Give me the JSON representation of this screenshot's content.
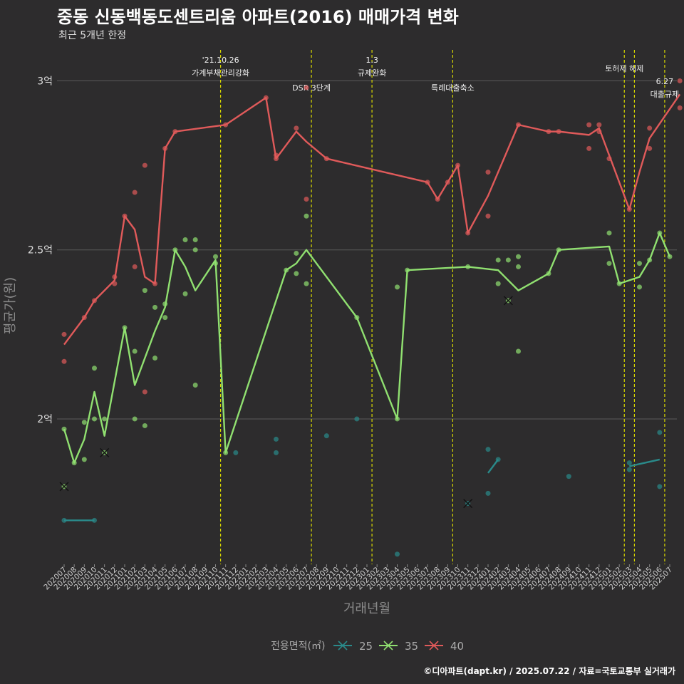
{
  "title": "중동 신동백동도센트리움 아파트(2016) 매매가격 변화",
  "subtitle": "최근 5개년 한정",
  "caption": "©디아파트(dapt.kr) / 2025.07.22 / 자료=국토교통부 실거래가",
  "colors": {
    "background": "#2d2c2d",
    "grid": "#5a5a5a",
    "event_line": "#d8d800",
    "s25": "#2a8a8a",
    "s35": "#90e070",
    "s40": "#e05a5a"
  },
  "chart_data": {
    "type": "line",
    "title": "중동 신동백동도센트리움 아파트(2016) 매매가격 변화",
    "subtitle": "최근 5개년 한정",
    "xlabel": "거래년월",
    "ylabel": "평균가(원)",
    "categories": [
      "202007",
      "202008",
      "202009",
      "202010",
      "202011",
      "202012",
      "202101",
      "202102",
      "202103",
      "202104",
      "202105",
      "202106",
      "202107",
      "202108",
      "202109",
      "202110",
      "202111",
      "202112",
      "202201",
      "202202",
      "202203",
      "202204",
      "202205",
      "202206",
      "202207",
      "202208",
      "202209",
      "202210",
      "202211",
      "202212",
      "202301",
      "202302",
      "202303",
      "202304",
      "202305",
      "202306",
      "202307",
      "202308",
      "202309",
      "202310",
      "202311",
      "202312",
      "202401",
      "202402",
      "202403",
      "202404",
      "202405",
      "202406",
      "202407",
      "202408",
      "202409",
      "202410",
      "202411",
      "202412",
      "202501",
      "202502",
      "202503",
      "202504",
      "202505",
      "202506",
      "202507"
    ],
    "yticks": [
      {
        "value": 2.0,
        "label": "2억"
      },
      {
        "value": 2.5,
        "label": "2.5억"
      },
      {
        "value": 3.0,
        "label": "3억"
      }
    ],
    "ylim": [
      1.57,
      3.1
    ],
    "grid": true,
    "legend": {
      "title": "전용면적(㎡)",
      "position": "bottom"
    },
    "series": [
      {
        "name": "25",
        "color": "#2a8a8a",
        "line": [
          [
            0,
            1.7
          ],
          [
            3,
            1.7
          ],
          null,
          [
            42,
            1.84
          ],
          [
            43,
            1.88
          ],
          null,
          [
            56,
            1.86
          ],
          [
            59,
            1.88
          ]
        ],
        "points": [
          [
            0,
            1.7
          ],
          [
            3,
            1.7
          ],
          [
            17,
            1.9
          ],
          [
            21,
            1.94
          ],
          [
            21,
            1.9
          ],
          [
            26,
            1.95
          ],
          [
            29,
            2.0
          ],
          [
            33,
            1.6
          ],
          [
            42,
            1.91
          ],
          [
            42,
            1.78
          ],
          [
            43,
            1.88
          ],
          [
            50,
            1.83
          ],
          [
            56,
            1.87
          ],
          [
            56,
            1.85
          ],
          [
            59,
            1.96
          ],
          [
            59,
            1.8
          ]
        ],
        "cancelled": [
          [
            40,
            1.75
          ]
        ]
      },
      {
        "name": "35",
        "color": "#90e070",
        "line": [
          [
            0,
            1.97
          ],
          [
            1,
            1.87
          ],
          [
            2,
            1.94
          ],
          [
            3,
            2.08
          ],
          [
            4,
            1.95
          ],
          [
            6,
            2.27
          ],
          [
            7,
            2.1
          ],
          [
            9,
            2.26
          ],
          [
            10,
            2.33
          ],
          [
            11,
            2.5
          ],
          [
            12,
            2.45
          ],
          [
            13,
            2.38
          ],
          [
            15,
            2.47
          ],
          [
            16,
            1.9
          ],
          [
            22,
            2.44
          ],
          [
            23,
            2.46
          ],
          [
            24,
            2.5
          ],
          [
            29,
            2.3
          ],
          [
            33,
            2.0
          ],
          [
            34,
            2.44
          ],
          [
            40,
            2.45
          ],
          [
            43,
            2.44
          ],
          [
            44,
            2.41
          ],
          [
            45,
            2.38
          ],
          [
            48,
            2.43
          ],
          [
            49,
            2.5
          ],
          [
            54,
            2.51
          ],
          [
            55,
            2.4
          ],
          [
            56,
            2.41
          ],
          [
            57,
            2.42
          ],
          [
            58,
            2.47
          ],
          [
            59,
            2.55
          ],
          [
            60,
            2.48
          ]
        ],
        "points": [
          [
            0,
            1.97
          ],
          [
            1,
            1.87
          ],
          [
            2,
            1.99
          ],
          [
            2,
            1.88
          ],
          [
            3,
            2.15
          ],
          [
            3,
            2.0
          ],
          [
            4,
            2.0
          ],
          [
            6,
            2.27
          ],
          [
            7,
            2.2
          ],
          [
            7,
            2.0
          ],
          [
            8,
            2.38
          ],
          [
            8,
            1.98
          ],
          [
            9,
            2.33
          ],
          [
            9,
            2.18
          ],
          [
            10,
            2.34
          ],
          [
            10,
            2.3
          ],
          [
            11,
            2.5
          ],
          [
            12,
            2.53
          ],
          [
            12,
            2.37
          ],
          [
            13,
            2.53
          ],
          [
            13,
            2.5
          ],
          [
            13,
            2.1
          ],
          [
            15,
            2.48
          ],
          [
            15,
            2.46
          ],
          [
            16,
            1.9
          ],
          [
            22,
            2.44
          ],
          [
            23,
            2.49
          ],
          [
            23,
            2.43
          ],
          [
            24,
            2.6
          ],
          [
            24,
            2.4
          ],
          [
            29,
            2.3
          ],
          [
            33,
            2.39
          ],
          [
            33,
            2.0
          ],
          [
            34,
            2.44
          ],
          [
            40,
            2.45
          ],
          [
            43,
            2.47
          ],
          [
            43,
            2.4
          ],
          [
            44,
            2.47
          ],
          [
            45,
            2.48
          ],
          [
            45,
            2.45
          ],
          [
            45,
            2.2
          ],
          [
            48,
            2.43
          ],
          [
            49,
            2.5
          ],
          [
            54,
            2.55
          ],
          [
            54,
            2.46
          ],
          [
            55,
            2.4
          ],
          [
            57,
            2.46
          ],
          [
            57,
            2.39
          ],
          [
            58,
            2.47
          ],
          [
            59,
            2.55
          ],
          [
            60,
            2.48
          ]
        ],
        "cancelled": [
          [
            0,
            1.8
          ],
          [
            4,
            1.9
          ],
          [
            44,
            2.35
          ]
        ]
      },
      {
        "name": "40",
        "color": "#e05a5a",
        "line": [
          [
            0,
            2.22
          ],
          [
            2,
            2.3
          ],
          [
            3,
            2.35
          ],
          [
            5,
            2.41
          ],
          [
            6,
            2.6
          ],
          [
            7,
            2.56
          ],
          [
            8,
            2.42
          ],
          [
            9,
            2.4
          ],
          [
            10,
            2.8
          ],
          [
            11,
            2.85
          ],
          [
            16,
            2.87
          ],
          [
            20,
            2.95
          ],
          [
            21,
            2.77
          ],
          [
            23,
            2.85
          ],
          [
            24,
            2.82
          ],
          [
            26,
            2.77
          ],
          [
            36,
            2.7
          ],
          [
            37,
            2.65
          ],
          [
            38,
            2.7
          ],
          [
            39,
            2.75
          ],
          [
            40,
            2.55
          ],
          [
            42,
            2.66
          ],
          [
            45,
            2.87
          ],
          [
            48,
            2.85
          ],
          [
            49,
            2.85
          ],
          [
            52,
            2.84
          ],
          [
            53,
            2.86
          ],
          [
            54,
            2.78
          ],
          [
            56,
            2.62
          ],
          [
            57,
            2.73
          ],
          [
            58,
            2.83
          ],
          [
            61,
            2.96
          ]
        ],
        "points": [
          [
            0,
            2.25
          ],
          [
            0,
            2.17
          ],
          [
            2,
            2.3
          ],
          [
            3,
            2.35
          ],
          [
            5,
            2.42
          ],
          [
            5,
            2.4
          ],
          [
            6,
            2.6
          ],
          [
            7,
            2.67
          ],
          [
            7,
            2.45
          ],
          [
            8,
            2.75
          ],
          [
            8,
            2.08
          ],
          [
            9,
            2.4
          ],
          [
            10,
            2.8
          ],
          [
            11,
            2.85
          ],
          [
            16,
            2.87
          ],
          [
            20,
            2.95
          ],
          [
            21,
            2.78
          ],
          [
            21,
            2.77
          ],
          [
            23,
            2.86
          ],
          [
            24,
            2.98
          ],
          [
            24,
            2.65
          ],
          [
            26,
            2.77
          ],
          [
            36,
            2.7
          ],
          [
            37,
            2.65
          ],
          [
            38,
            2.7
          ],
          [
            39,
            2.75
          ],
          [
            40,
            2.55
          ],
          [
            42,
            2.73
          ],
          [
            42,
            2.6
          ],
          [
            45,
            2.87
          ],
          [
            48,
            2.85
          ],
          [
            49,
            2.85
          ],
          [
            52,
            2.87
          ],
          [
            52,
            2.8
          ],
          [
            53,
            2.87
          ],
          [
            53,
            2.85
          ],
          [
            54,
            2.77
          ],
          [
            56,
            2.62
          ],
          [
            58,
            2.86
          ],
          [
            58,
            2.8
          ],
          [
            61,
            3.0
          ],
          [
            61,
            2.92
          ]
        ],
        "cancelled": []
      }
    ],
    "events": [
      {
        "index": 15.5,
        "lines": [
          "'21.10.26",
          "가계부채관리강화"
        ],
        "row": 0
      },
      {
        "index": 24.5,
        "lines": [
          "DSR 3단계"
        ],
        "row": 2
      },
      {
        "index": 30.5,
        "lines": [
          "1.3",
          "규제완화"
        ],
        "row": 0
      },
      {
        "index": 38.5,
        "lines": [
          "특례대출축소"
        ],
        "row": 2
      },
      {
        "index": 55.5,
        "lines": [
          "토허제 해제"
        ],
        "row": 1
      },
      {
        "index": 56.5,
        "lines": [],
        "row": 0
      },
      {
        "index": 59.5,
        "lines": [
          "6.27",
          "대출규제"
        ],
        "row": 1.6
      }
    ]
  }
}
